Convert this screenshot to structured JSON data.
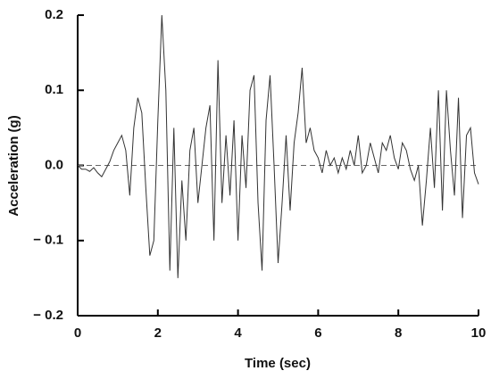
{
  "chart_data": {
    "type": "line",
    "xlabel": "Time (sec)",
    "ylabel": "Acceleration (g)",
    "x": [
      0,
      0.1,
      0.2,
      0.3,
      0.4,
      0.5,
      0.6,
      0.7,
      0.8,
      0.9,
      1.0,
      1.1,
      1.2,
      1.3,
      1.4,
      1.5,
      1.6,
      1.7,
      1.8,
      1.9,
      2.0,
      2.1,
      2.2,
      2.3,
      2.4,
      2.5,
      2.6,
      2.7,
      2.8,
      2.9,
      3.0,
      3.1,
      3.2,
      3.3,
      3.4,
      3.5,
      3.6,
      3.7,
      3.8,
      3.9,
      4.0,
      4.1,
      4.2,
      4.3,
      4.4,
      4.5,
      4.6,
      4.7,
      4.8,
      4.9,
      5.0,
      5.1,
      5.2,
      5.3,
      5.4,
      5.5,
      5.6,
      5.7,
      5.8,
      5.9,
      6.0,
      6.1,
      6.2,
      6.3,
      6.4,
      6.5,
      6.6,
      6.7,
      6.8,
      6.9,
      7.0,
      7.1,
      7.2,
      7.3,
      7.4,
      7.5,
      7.6,
      7.7,
      7.8,
      7.9,
      8.0,
      8.1,
      8.2,
      8.3,
      8.4,
      8.5,
      8.6,
      8.7,
      8.8,
      8.9,
      9.0,
      9.1,
      9.2,
      9.3,
      9.4,
      9.5,
      9.6,
      9.7,
      9.8,
      9.9,
      10.0
    ],
    "series": [
      {
        "color": "#333333",
        "values": [
          0,
          -0.005,
          -0.005,
          -0.008,
          -0.003,
          -0.01,
          -0.015,
          -0.005,
          0.005,
          0.02,
          0.03,
          0.04,
          0.02,
          -0.04,
          0.05,
          0.09,
          0.07,
          -0.03,
          -0.12,
          -0.1,
          0.06,
          0.2,
          0.1,
          -0.14,
          0.05,
          -0.15,
          -0.02,
          -0.1,
          0.02,
          0.05,
          -0.05,
          0.0,
          0.05,
          0.08,
          -0.1,
          0.14,
          -0.05,
          0.04,
          -0.04,
          0.06,
          -0.1,
          0.04,
          -0.03,
          0.1,
          0.12,
          -0.05,
          -0.14,
          0.06,
          0.12,
          0.0,
          -0.13,
          -0.05,
          0.04,
          -0.06,
          0.03,
          0.07,
          0.13,
          0.03,
          0.05,
          0.02,
          0.01,
          -0.01,
          0.02,
          0.0,
          0.01,
          -0.01,
          0.01,
          -0.005,
          0.02,
          0.0,
          0.04,
          -0.01,
          0.0,
          0.03,
          0.01,
          -0.01,
          0.03,
          0.02,
          0.04,
          0.01,
          -0.005,
          0.03,
          0.02,
          -0.005,
          -0.02,
          0.0,
          -0.08,
          -0.02,
          0.05,
          -0.03,
          0.1,
          -0.06,
          0.1,
          0.02,
          -0.04,
          0.09,
          -0.07,
          0.04,
          0.05,
          -0.01,
          -0.025
        ]
      }
    ],
    "xlim": [
      0,
      10
    ],
    "xticks": [
      0,
      2,
      4,
      6,
      8,
      10
    ],
    "ylim": [
      -0.2,
      0.2
    ],
    "yticks": [
      {
        "value": -0.2,
        "label": "− 0.2"
      },
      {
        "value": -0.1,
        "label": "− 0.1"
      },
      {
        "value": 0,
        "label": "0.0"
      },
      0.1,
      0.2
    ],
    "zero_line": true
  }
}
